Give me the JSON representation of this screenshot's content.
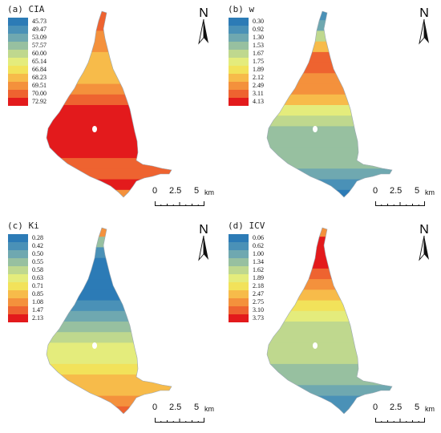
{
  "panels": [
    {
      "title": "(a) CIA",
      "legend": [
        "45.73",
        "49.47",
        "53.09",
        "57.57",
        "60.00",
        "65.14",
        "66.84",
        "68.23",
        "69.51",
        "70.00",
        "72.92"
      ],
      "colors": [
        "#2c7bb6",
        "#4a91b7",
        "#6fa8b0",
        "#97c0a0",
        "#bfd88e",
        "#e4ec7c",
        "#f2e25a",
        "#f7bb4a",
        "#f4913c",
        "#ee6330",
        "#e31a1c"
      ],
      "zones": [
        9,
        9,
        8,
        8,
        7,
        7,
        7,
        8,
        9,
        10,
        10,
        10,
        10,
        10,
        9,
        9,
        10,
        8
      ]
    },
    {
      "title": "(b) w",
      "legend": [
        "0.30",
        "0.92",
        "1.30",
        "1.53",
        "1.67",
        "1.75",
        "1.89",
        "2.12",
        "2.49",
        "3.11",
        "4.13"
      ],
      "colors": [
        "#2c7bb6",
        "#4a91b7",
        "#6fa8b0",
        "#97c0a0",
        "#bfd88e",
        "#e4ec7c",
        "#f2e25a",
        "#f7bb4a",
        "#f4913c",
        "#ee6330",
        "#e31a1c"
      ],
      "zones": [
        1,
        2,
        4,
        7,
        9,
        9,
        8,
        8,
        7,
        5,
        4,
        3,
        3,
        3,
        3,
        2,
        1,
        0
      ]
    },
    {
      "title": "(c) Ki",
      "legend": [
        "0.28",
        "0.42",
        "0.50",
        "0.55",
        "0.58",
        "0.63",
        "0.71",
        "0.85",
        "1.08",
        "1.47",
        "2.13"
      ],
      "colors": [
        "#2c7bb6",
        "#4a91b7",
        "#6fa8b0",
        "#97c0a0",
        "#bfd88e",
        "#e4ec7c",
        "#f2e25a",
        "#f7bb4a",
        "#f4913c",
        "#ee6330",
        "#e31a1c"
      ],
      "zones": [
        8,
        3,
        1,
        0,
        0,
        0,
        0,
        1,
        2,
        3,
        4,
        5,
        5,
        6,
        7,
        7,
        8,
        9
      ]
    },
    {
      "title": "(d) ICV",
      "legend": [
        "0.06",
        "0.62",
        "1.00",
        "1.34",
        "1.62",
        "1.89",
        "2.18",
        "2.47",
        "2.75",
        "3.10",
        "3.73"
      ],
      "colors": [
        "#2c7bb6",
        "#4a91b7",
        "#6fa8b0",
        "#97c0a0",
        "#bfd88e",
        "#e4ec7c",
        "#f2e25a",
        "#f7bb4a",
        "#f4913c",
        "#ee6330",
        "#e31a1c"
      ],
      "zones": [
        8,
        10,
        10,
        10,
        9,
        8,
        7,
        6,
        5,
        4,
        4,
        4,
        4,
        3,
        3,
        2,
        1,
        1
      ]
    }
  ],
  "north_label": "N",
  "scale": {
    "ticks": [
      "0",
      "2.5",
      "5"
    ],
    "unit": "km"
  }
}
